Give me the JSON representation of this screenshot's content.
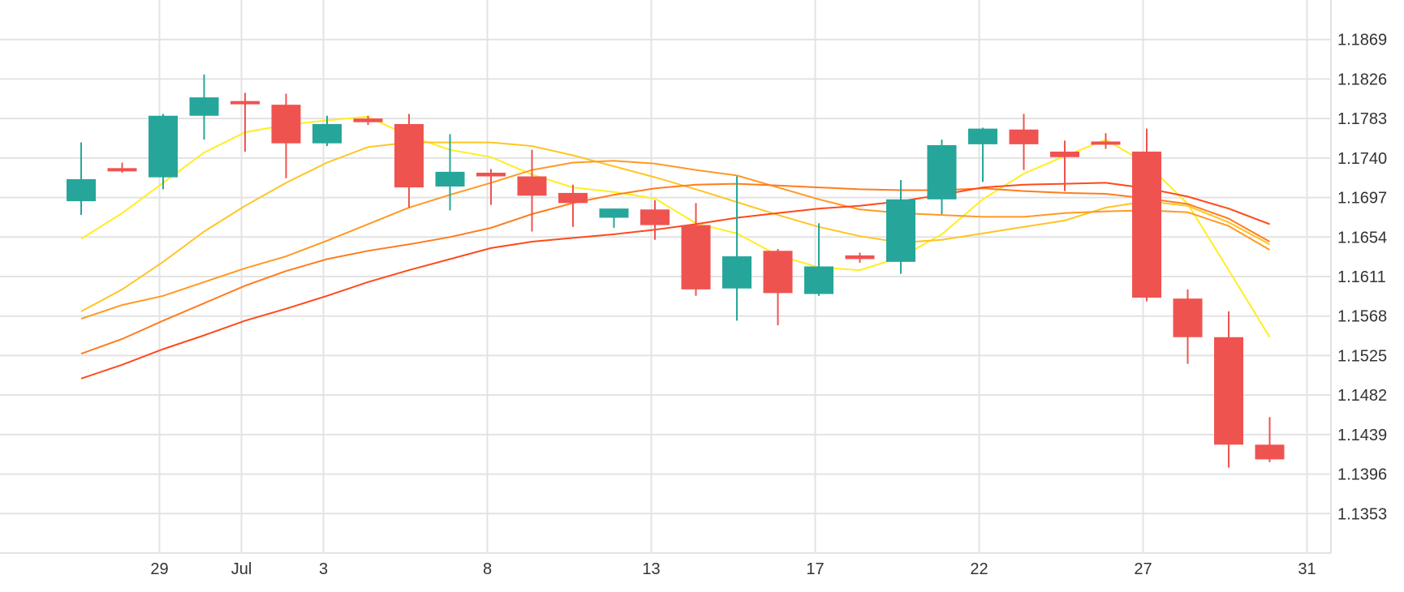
{
  "chart_data": {
    "type": "candlestick",
    "title": "",
    "xlabel": "",
    "ylabel": "",
    "ylim": [
      1.131,
      1.1912
    ],
    "y_ticks": [
      "1.1869",
      "1.1826",
      "1.1783",
      "1.1740",
      "1.1697",
      "1.1654",
      "1.1611",
      "1.1568",
      "1.1525",
      "1.1482",
      "1.1439",
      "1.1396",
      "1.1353"
    ],
    "x_ticks": [
      {
        "label": "29",
        "index": 1
      },
      {
        "label": "Jul",
        "index": 3
      },
      {
        "label": "3",
        "index": 5
      },
      {
        "label": "8",
        "index": 9
      },
      {
        "label": "13",
        "index": 13
      },
      {
        "label": "17",
        "index": 17
      },
      {
        "label": "22",
        "index": 21
      },
      {
        "label": "27",
        "index": 25
      },
      {
        "label": "31",
        "index": 29
      }
    ],
    "grid": true,
    "colors": {
      "up": "#26a69a",
      "down": "#ef5350"
    },
    "candles": [
      {
        "i": 0,
        "o": 1.1693,
        "h": 1.1757,
        "l": 1.1678,
        "c": 1.1717
      },
      {
        "i": 1,
        "o": 1.1729,
        "h": 1.1735,
        "l": 1.1724,
        "c": 1.1727
      },
      {
        "i": 2,
        "o": 1.1719,
        "h": 1.1788,
        "l": 1.1706,
        "c": 1.1786
      },
      {
        "i": 3,
        "o": 1.1786,
        "h": 1.1831,
        "l": 1.176,
        "c": 1.1806
      },
      {
        "i": 4,
        "o": 1.1802,
        "h": 1.1811,
        "l": 1.1747,
        "c": 1.1799
      },
      {
        "i": 5,
        "o": 1.1798,
        "h": 1.181,
        "l": 1.1718,
        "c": 1.1756
      },
      {
        "i": 6,
        "o": 1.1756,
        "h": 1.1786,
        "l": 1.1753,
        "c": 1.1777
      },
      {
        "i": 7,
        "o": 1.1783,
        "h": 1.1786,
        "l": 1.1776,
        "c": 1.1779
      },
      {
        "i": 8,
        "o": 1.1777,
        "h": 1.1788,
        "l": 1.1686,
        "c": 1.1708
      },
      {
        "i": 9,
        "o": 1.1709,
        "h": 1.1766,
        "l": 1.1683,
        "c": 1.1725
      },
      {
        "i": 10,
        "o": 1.1724,
        "h": 1.1728,
        "l": 1.1689,
        "c": 1.172
      },
      {
        "i": 11,
        "o": 1.172,
        "h": 1.1749,
        "l": 1.166,
        "c": 1.1699
      },
      {
        "i": 12,
        "o": 1.1702,
        "h": 1.1711,
        "l": 1.1665,
        "c": 1.1691
      },
      {
        "i": 13,
        "o": 1.1675,
        "h": 1.1685,
        "l": 1.1664,
        "c": 1.1685
      },
      {
        "i": 14,
        "o": 1.1684,
        "h": 1.1694,
        "l": 1.1651,
        "c": 1.1667
      },
      {
        "i": 15,
        "o": 1.1667,
        "h": 1.1691,
        "l": 1.159,
        "c": 1.1597
      },
      {
        "i": 16,
        "o": 1.1598,
        "h": 1.172,
        "l": 1.1563,
        "c": 1.1633
      },
      {
        "i": 17,
        "o": 1.1639,
        "h": 1.1641,
        "l": 1.1558,
        "c": 1.1593
      },
      {
        "i": 18,
        "o": 1.1592,
        "h": 1.1669,
        "l": 1.159,
        "c": 1.1622
      },
      {
        "i": 19,
        "o": 1.1634,
        "h": 1.1637,
        "l": 1.1626,
        "c": 1.163
      },
      {
        "i": 20,
        "o": 1.1627,
        "h": 1.1716,
        "l": 1.1614,
        "c": 1.1695
      },
      {
        "i": 21,
        "o": 1.1695,
        "h": 1.176,
        "l": 1.1679,
        "c": 1.1754
      },
      {
        "i": 22,
        "o": 1.1755,
        "h": 1.1773,
        "l": 1.1714,
        "c": 1.1772
      },
      {
        "i": 23,
        "o": 1.1771,
        "h": 1.1788,
        "l": 1.1727,
        "c": 1.1755
      },
      {
        "i": 24,
        "o": 1.1747,
        "h": 1.1759,
        "l": 1.1704,
        "c": 1.1741
      },
      {
        "i": 25,
        "o": 1.1758,
        "h": 1.1767,
        "l": 1.175,
        "c": 1.1755
      },
      {
        "i": 26,
        "o": 1.1747,
        "h": 1.1772,
        "l": 1.1584,
        "c": 1.1588
      },
      {
        "i": 27,
        "o": 1.1587,
        "h": 1.1597,
        "l": 1.1516,
        "c": 1.1545
      },
      {
        "i": 28,
        "o": 1.1545,
        "h": 1.1573,
        "l": 1.1403,
        "c": 1.1428
      },
      {
        "i": 29,
        "o": 1.1428,
        "h": 1.1458,
        "l": 1.1409,
        "c": 1.1412
      }
    ],
    "series": [
      {
        "type": "line",
        "color": "#ffee22",
        "points": [
          [
            0,
            1.1652
          ],
          [
            1,
            1.168
          ],
          [
            2,
            1.1713
          ],
          [
            3,
            1.1746
          ],
          [
            4,
            1.1768
          ],
          [
            5,
            1.1776
          ],
          [
            6,
            1.1781
          ],
          [
            7,
            1.1785
          ],
          [
            8,
            1.1764
          ],
          [
            9,
            1.1749
          ],
          [
            10,
            1.1741
          ],
          [
            11,
            1.1722
          ],
          [
            12,
            1.1708
          ],
          [
            13,
            1.1703
          ],
          [
            14,
            1.1696
          ],
          [
            15,
            1.1669
          ],
          [
            16,
            1.1658
          ],
          [
            17,
            1.1634
          ],
          [
            18,
            1.1621
          ],
          [
            19,
            1.1618
          ],
          [
            20,
            1.1632
          ],
          [
            21,
            1.1657
          ],
          [
            22,
            1.1695
          ],
          [
            23,
            1.1723
          ],
          [
            24,
            1.1742
          ],
          [
            25,
            1.176
          ],
          [
            26,
            1.1734
          ],
          [
            27,
            1.169
          ],
          [
            28,
            1.1618
          ],
          [
            29,
            1.1545
          ]
        ]
      },
      {
        "type": "line",
        "color": "#ffc524",
        "points": [
          [
            0,
            1.1573
          ],
          [
            1,
            1.1597
          ],
          [
            2,
            1.1627
          ],
          [
            3,
            1.166
          ],
          [
            4,
            1.1688
          ],
          [
            5,
            1.1713
          ],
          [
            6,
            1.1735
          ],
          [
            7,
            1.1752
          ],
          [
            8,
            1.1757
          ],
          [
            9,
            1.1757
          ],
          [
            10,
            1.1757
          ],
          [
            11,
            1.1753
          ],
          [
            12,
            1.1743
          ],
          [
            13,
            1.1731
          ],
          [
            14,
            1.1719
          ],
          [
            15,
            1.1706
          ],
          [
            16,
            1.1692
          ],
          [
            17,
            1.1678
          ],
          [
            18,
            1.1665
          ],
          [
            19,
            1.1655
          ],
          [
            20,
            1.1648
          ],
          [
            21,
            1.1651
          ],
          [
            22,
            1.1658
          ],
          [
            23,
            1.1665
          ],
          [
            24,
            1.1672
          ],
          [
            25,
            1.1686
          ],
          [
            26,
            1.1693
          ],
          [
            27,
            1.1688
          ],
          [
            28,
            1.167
          ],
          [
            29,
            1.1646
          ]
        ]
      },
      {
        "type": "line",
        "color": "#ff9924",
        "points": [
          [
            0,
            1.1565
          ],
          [
            1,
            1.158
          ],
          [
            2,
            1.159
          ],
          [
            3,
            1.1605
          ],
          [
            4,
            1.162
          ],
          [
            5,
            1.1633
          ],
          [
            6,
            1.165
          ],
          [
            7,
            1.1668
          ],
          [
            8,
            1.1686
          ],
          [
            9,
            1.17
          ],
          [
            10,
            1.1713
          ],
          [
            11,
            1.1727
          ],
          [
            12,
            1.1735
          ],
          [
            13,
            1.1737
          ],
          [
            14,
            1.1734
          ],
          [
            15,
            1.1727
          ],
          [
            16,
            1.1721
          ],
          [
            17,
            1.1708
          ],
          [
            18,
            1.1695
          ],
          [
            19,
            1.1684
          ],
          [
            20,
            1.168
          ],
          [
            21,
            1.1678
          ],
          [
            22,
            1.1676
          ],
          [
            23,
            1.1676
          ],
          [
            24,
            1.168
          ],
          [
            25,
            1.1682
          ],
          [
            26,
            1.1683
          ],
          [
            27,
            1.1681
          ],
          [
            28,
            1.1666
          ],
          [
            29,
            1.164
          ]
        ]
      },
      {
        "type": "line",
        "color": "#ff7c1e",
        "points": [
          [
            0,
            1.1527
          ],
          [
            1,
            1.1543
          ],
          [
            2,
            1.1563
          ],
          [
            3,
            1.1582
          ],
          [
            4,
            1.1601
          ],
          [
            5,
            1.1617
          ],
          [
            6,
            1.163
          ],
          [
            7,
            1.1639
          ],
          [
            8,
            1.1646
          ],
          [
            9,
            1.1654
          ],
          [
            10,
            1.1664
          ],
          [
            11,
            1.1679
          ],
          [
            12,
            1.1691
          ],
          [
            13,
            1.17
          ],
          [
            14,
            1.1707
          ],
          [
            15,
            1.1711
          ],
          [
            16,
            1.1712
          ],
          [
            17,
            1.171
          ],
          [
            18,
            1.1708
          ],
          [
            19,
            1.1706
          ],
          [
            20,
            1.1705
          ],
          [
            21,
            1.1705
          ],
          [
            22,
            1.1707
          ],
          [
            23,
            1.1704
          ],
          [
            24,
            1.1702
          ],
          [
            25,
            1.1701
          ],
          [
            26,
            1.1696
          ],
          [
            27,
            1.169
          ],
          [
            28,
            1.1674
          ],
          [
            29,
            1.1649
          ]
        ]
      },
      {
        "type": "line",
        "color": "#ff4a1a",
        "points": [
          [
            0,
            1.15
          ],
          [
            1,
            1.1515
          ],
          [
            2,
            1.1532
          ],
          [
            3,
            1.1547
          ],
          [
            4,
            1.1563
          ],
          [
            5,
            1.1576
          ],
          [
            6,
            1.159
          ],
          [
            7,
            1.1605
          ],
          [
            8,
            1.1618
          ],
          [
            9,
            1.163
          ],
          [
            10,
            1.1642
          ],
          [
            11,
            1.1649
          ],
          [
            12,
            1.1653
          ],
          [
            13,
            1.1657
          ],
          [
            14,
            1.1662
          ],
          [
            15,
            1.1668
          ],
          [
            16,
            1.1675
          ],
          [
            17,
            1.168
          ],
          [
            18,
            1.1685
          ],
          [
            19,
            1.1688
          ],
          [
            20,
            1.1693
          ],
          [
            21,
            1.17
          ],
          [
            22,
            1.1708
          ],
          [
            23,
            1.1711
          ],
          [
            24,
            1.1712
          ],
          [
            25,
            1.1713
          ],
          [
            26,
            1.1707
          ],
          [
            27,
            1.1698
          ],
          [
            28,
            1.1685
          ],
          [
            29,
            1.1668
          ]
        ]
      }
    ]
  }
}
